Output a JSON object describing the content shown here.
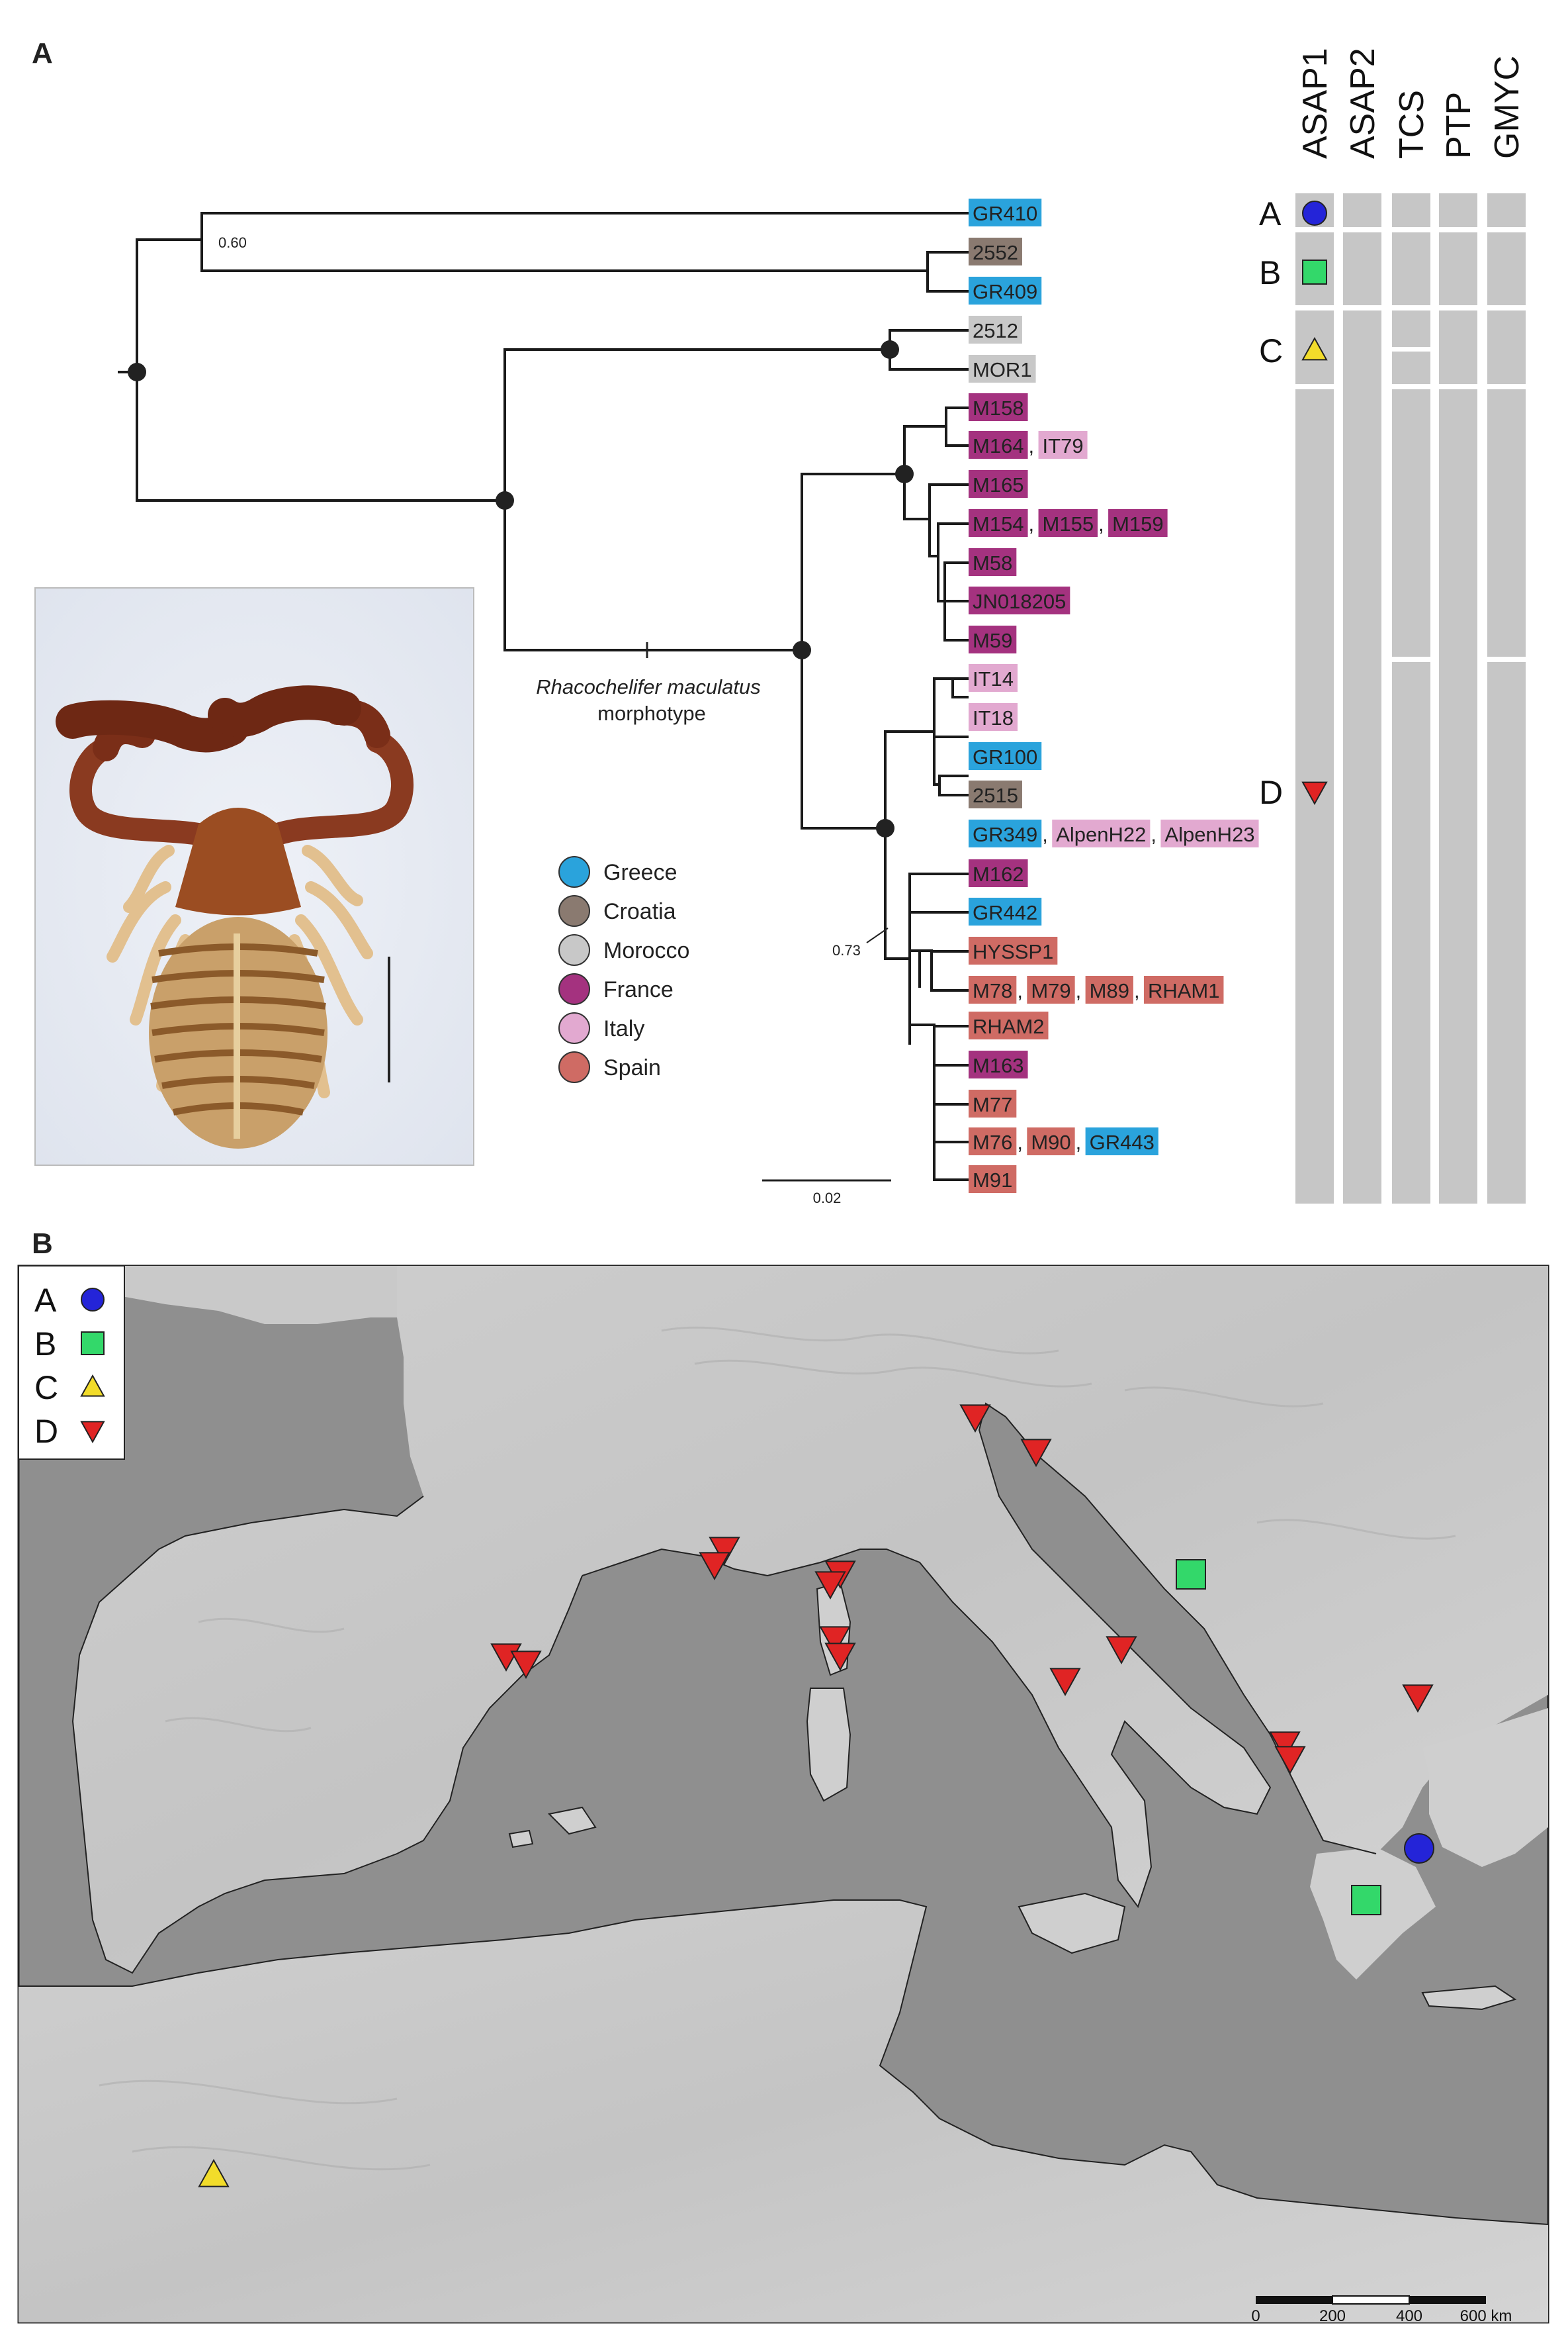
{
  "panel_a_label": "A",
  "panel_b_label": "B",
  "colors": {
    "Greece": "#2aa3dc",
    "Croatia": "#8a7a70",
    "Morocco": "#c8c8c8",
    "France": "#a4327f",
    "Italy": "#e2a9d0",
    "Spain": "#cf6b64",
    "groupA": "#2424d8",
    "groupB": "#33d86a",
    "groupC": "#f2dc2a",
    "groupD": "#e02424"
  },
  "tree": {
    "support_060": "0.60",
    "support_073": "0.73",
    "morph_species": "Rhacochelifer maculatus",
    "morph_word": "morphotype",
    "scale_label": "0.02",
    "tips": [
      {
        "id": "t1",
        "labels": [
          {
            "text": "GR410",
            "country": "Greece"
          }
        ]
      },
      {
        "id": "t2",
        "labels": [
          {
            "text": "2552",
            "country": "Croatia"
          }
        ]
      },
      {
        "id": "t3",
        "labels": [
          {
            "text": "GR409",
            "country": "Greece"
          }
        ]
      },
      {
        "id": "t4",
        "labels": [
          {
            "text": "2512",
            "country": "Morocco"
          }
        ]
      },
      {
        "id": "t5",
        "labels": [
          {
            "text": "MOR1",
            "country": "Morocco"
          }
        ]
      },
      {
        "id": "t6",
        "labels": [
          {
            "text": "M158",
            "country": "France"
          }
        ]
      },
      {
        "id": "t7",
        "labels": [
          {
            "text": "M164",
            "country": "France"
          },
          {
            "text": "IT79",
            "country": "Italy"
          }
        ]
      },
      {
        "id": "t8",
        "labels": [
          {
            "text": "M165",
            "country": "France"
          }
        ]
      },
      {
        "id": "t9",
        "labels": [
          {
            "text": "M154",
            "country": "France"
          },
          {
            "text": "M155",
            "country": "France"
          },
          {
            "text": "M159",
            "country": "France"
          }
        ]
      },
      {
        "id": "t10",
        "labels": [
          {
            "text": "M58",
            "country": "France"
          }
        ]
      },
      {
        "id": "t11",
        "labels": [
          {
            "text": "JN018205",
            "country": "France"
          }
        ]
      },
      {
        "id": "t12",
        "labels": [
          {
            "text": "M59",
            "country": "France"
          }
        ]
      },
      {
        "id": "t13",
        "labels": [
          {
            "text": "IT14",
            "country": "Italy"
          }
        ]
      },
      {
        "id": "t14",
        "labels": [
          {
            "text": "IT18",
            "country": "Italy"
          }
        ]
      },
      {
        "id": "t15",
        "labels": [
          {
            "text": "GR100",
            "country": "Greece"
          }
        ]
      },
      {
        "id": "t16",
        "labels": [
          {
            "text": "2515",
            "country": "Croatia"
          }
        ]
      },
      {
        "id": "t17",
        "labels": [
          {
            "text": "GR349",
            "country": "Greece"
          },
          {
            "text": "AlpenH22",
            "country": "Italy"
          },
          {
            "text": "AlpenH23",
            "country": "Italy"
          }
        ]
      },
      {
        "id": "t18",
        "labels": [
          {
            "text": "M162",
            "country": "France"
          }
        ]
      },
      {
        "id": "t19",
        "labels": [
          {
            "text": "GR442",
            "country": "Greece"
          }
        ]
      },
      {
        "id": "t20",
        "labels": [
          {
            "text": "HYSSP1",
            "country": "Spain"
          }
        ]
      },
      {
        "id": "t21",
        "labels": [
          {
            "text": "M78",
            "country": "Spain"
          },
          {
            "text": "M79",
            "country": "Spain"
          },
          {
            "text": "M89",
            "country": "Spain"
          },
          {
            "text": "RHAM1",
            "country": "Spain"
          }
        ]
      },
      {
        "id": "t22",
        "labels": [
          {
            "text": "RHAM2",
            "country": "Spain"
          }
        ]
      },
      {
        "id": "t23",
        "labels": [
          {
            "text": "M163",
            "country": "France"
          }
        ]
      },
      {
        "id": "t24",
        "labels": [
          {
            "text": "M77",
            "country": "Spain"
          }
        ]
      },
      {
        "id": "t25",
        "labels": [
          {
            "text": "M76",
            "country": "Spain"
          },
          {
            "text": "M90",
            "country": "Spain"
          },
          {
            "text": "GR443",
            "country": "Greece"
          }
        ]
      },
      {
        "id": "t26",
        "labels": [
          {
            "text": "M91",
            "country": "Spain"
          }
        ]
      }
    ]
  },
  "legend": {
    "countries": [
      "Greece",
      "Croatia",
      "Morocco",
      "France",
      "Italy",
      "Spain"
    ]
  },
  "delimitation": {
    "methods": [
      "ASAP1",
      "ASAP2",
      "TCS",
      "PTP",
      "GMYC"
    ],
    "groups": [
      {
        "label": "A",
        "symbol": "circle"
      },
      {
        "label": "B",
        "symbol": "square"
      },
      {
        "label": "C",
        "symbol": "triangle-up"
      },
      {
        "label": "D",
        "symbol": "triangle-down"
      }
    ]
  },
  "map": {
    "legend": [
      {
        "label": "A",
        "symbol": "circle"
      },
      {
        "label": "B",
        "symbol": "square"
      },
      {
        "label": "C",
        "symbol": "triangle-up"
      },
      {
        "label": "D",
        "symbol": "triangle-down"
      }
    ],
    "scale_labels": [
      "0",
      "200",
      "400",
      "600 km"
    ]
  }
}
